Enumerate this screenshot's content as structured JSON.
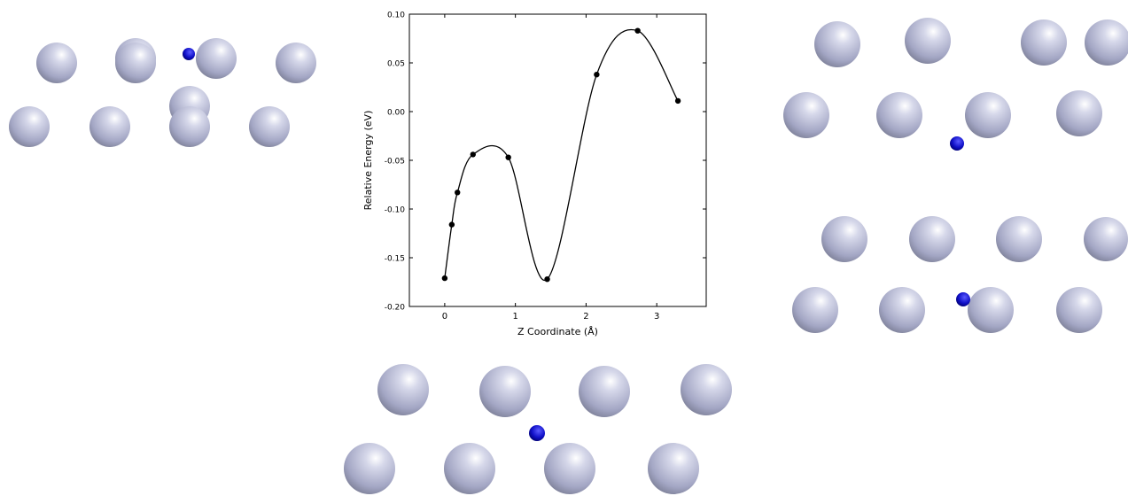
{
  "chart_data": {
    "type": "line",
    "x": [
      0,
      0.1,
      0.18,
      0.4,
      0.9,
      1.45,
      2.15,
      2.73,
      3.3
    ],
    "values": [
      -0.171,
      -0.116,
      -0.083,
      -0.044,
      -0.047,
      -0.172,
      0.038,
      0.083,
      0.011
    ],
    "color": "#000000",
    "smooth": true,
    "markers": true,
    "xlim": [
      -0.5,
      3.7
    ],
    "ylim": [
      -0.2,
      0.1
    ],
    "xticks": [
      0,
      1,
      2,
      3
    ],
    "yticks": [
      {
        "value": -0.2,
        "label": "-0.20"
      },
      -0.15,
      {
        "value": -0.1,
        "label": "-0.10"
      },
      -0.05,
      {
        "value": 0,
        "label": "0.00"
      },
      0.05,
      {
        "value": 0.1,
        "label": "0.10"
      }
    ],
    "x_label": "Z Coordinate (Å)",
    "y_label": "Relative Energy (eV)"
  }
}
